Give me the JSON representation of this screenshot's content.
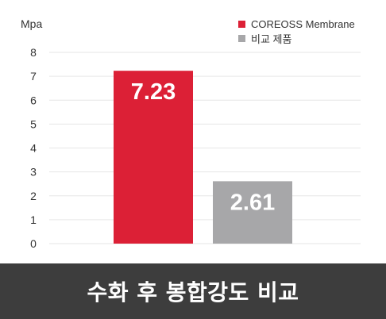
{
  "chart_data": {
    "type": "bar",
    "categories": [
      "COREOSS Membrane",
      "비교 제품"
    ],
    "values": [
      7.23,
      2.61
    ],
    "data_labels": [
      "7.23",
      "2.61"
    ],
    "colors": [
      "#dc2036",
      "#a7a7a9"
    ],
    "ylabel": "Mpa",
    "ylim": [
      0,
      8
    ],
    "yticks": [
      "0",
      "1",
      "2",
      "3",
      "4",
      "5",
      "6",
      "7",
      "8"
    ],
    "grid": true,
    "legend_position": "top-right",
    "legend": [
      {
        "label": "COREOSS Membrane",
        "color": "#dc2036"
      },
      {
        "label": "비교 제품",
        "color": "#a7a7a9"
      }
    ]
  },
  "footer": {
    "title": "수화 후 봉합강도 비교"
  }
}
